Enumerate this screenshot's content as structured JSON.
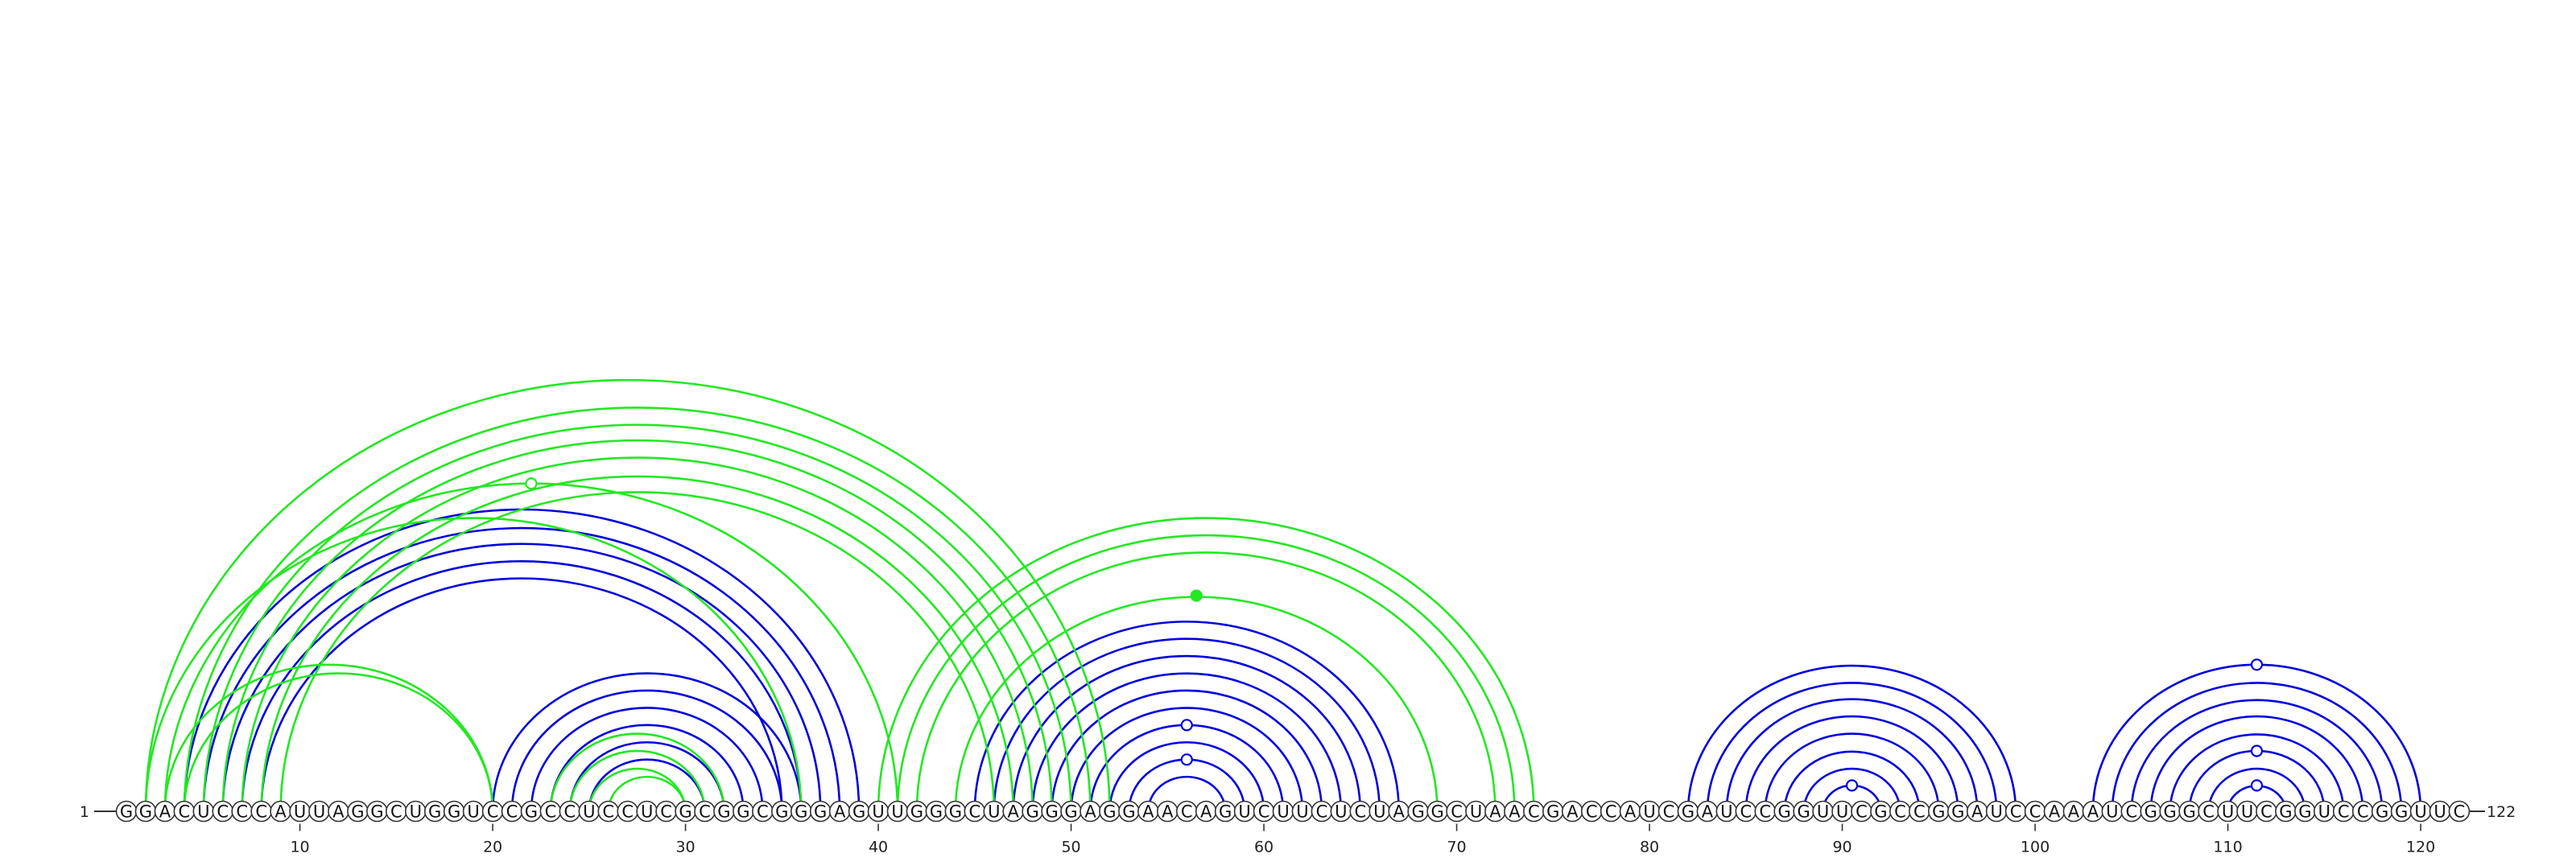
{
  "sequence": "GGACUCCCAUUAGGCUGGUCCGCCUCCUCGCGGCGGGAGUUGGGCUAGGGAGGAACAGUCUUCUCUAGGCUAACGACCAUCGAUCCGGUUCGCCGGAUCCAAAUCGGGCUUCGGUCCGGUUC",
  "start_label": "1",
  "end_label": "122",
  "tick_labels": [
    "10",
    "20",
    "30",
    "40",
    "50",
    "60",
    "70",
    "80",
    "90",
    "100",
    "110",
    "120"
  ],
  "colors": {
    "blue": "#0000dd",
    "green": "#22e822",
    "backbone": "#333333"
  },
  "blue_pairs": [
    [
      4,
      39
    ],
    [
      5,
      38
    ],
    [
      6,
      37
    ],
    [
      7,
      36
    ],
    [
      8,
      35
    ],
    [
      20,
      36
    ],
    [
      21,
      35
    ],
    [
      22,
      34
    ],
    [
      23,
      33
    ],
    [
      24,
      32
    ],
    [
      25,
      31
    ],
    [
      45,
      67
    ],
    [
      46,
      66
    ],
    [
      47,
      65
    ],
    [
      48,
      64
    ],
    [
      49,
      63
    ],
    [
      50,
      62
    ],
    [
      51,
      61
    ],
    [
      52,
      60
    ],
    [
      53,
      59
    ],
    [
      54,
      58
    ],
    [
      82,
      99
    ],
    [
      83,
      98
    ],
    [
      84,
      97
    ],
    [
      85,
      96
    ],
    [
      86,
      95
    ],
    [
      87,
      94
    ],
    [
      88,
      93
    ],
    [
      89,
      92
    ],
    [
      103,
      120
    ],
    [
      104,
      119
    ],
    [
      105,
      118
    ],
    [
      106,
      117
    ],
    [
      107,
      116
    ],
    [
      108,
      115
    ],
    [
      109,
      114
    ],
    [
      110,
      113
    ]
  ],
  "green_pairs": [
    [
      2,
      52
    ],
    [
      4,
      51
    ],
    [
      5,
      50
    ],
    [
      6,
      49
    ],
    [
      7,
      48
    ],
    [
      8,
      47
    ],
    [
      9,
      46
    ],
    [
      3,
      20
    ],
    [
      4,
      20
    ],
    [
      2,
      36
    ],
    [
      3,
      41
    ],
    [
      23,
      32
    ],
    [
      24,
      31
    ],
    [
      25,
      30
    ],
    [
      26,
      30
    ],
    [
      40,
      74
    ],
    [
      41,
      73
    ],
    [
      42,
      72
    ],
    [
      44,
      69
    ]
  ],
  "markers": [
    {
      "pos": 21.5,
      "series": "green",
      "filled": false
    },
    {
      "pos": 56.5,
      "series": "green",
      "filled": true
    },
    {
      "pos": 56.5,
      "series": "blue",
      "filled": false
    },
    {
      "pos": 56.5,
      "series": "blue",
      "filled": false
    },
    {
      "pos": 90.5,
      "series": "blue",
      "filled": false
    },
    {
      "pos": 111.5,
      "series": "blue",
      "filled": false
    },
    {
      "pos": 111.5,
      "series": "blue",
      "filled": false
    },
    {
      "pos": 111.5,
      "series": "blue",
      "filled": false
    }
  ]
}
